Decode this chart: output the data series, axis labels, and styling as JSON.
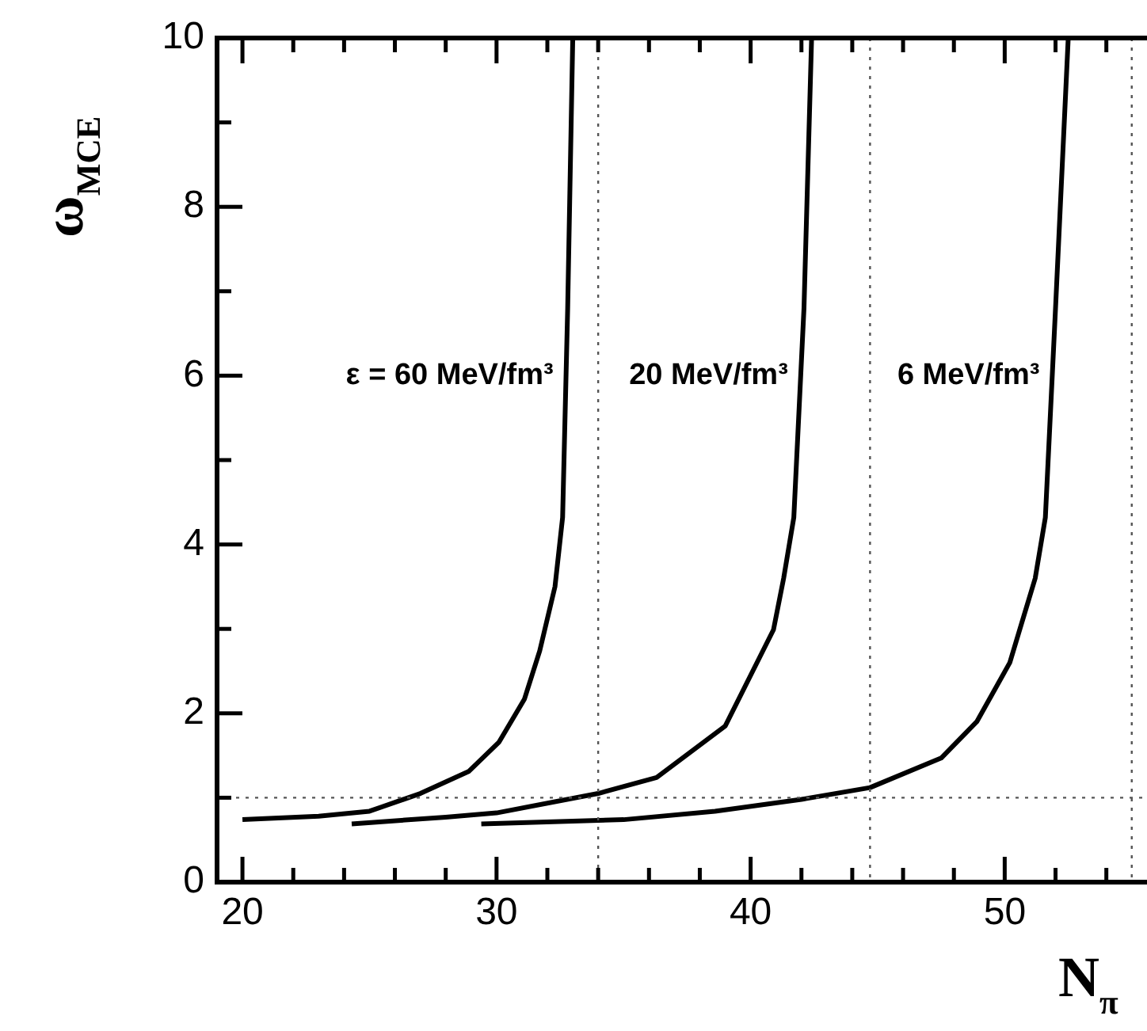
{
  "chart_data": {
    "type": "line",
    "xlabel": "N$_{π}$",
    "ylabel": "ω$_{MCE}$",
    "xlim": [
      19,
      55.6
    ],
    "ylim": [
      0,
      10
    ],
    "xticks": [
      20,
      {
        "value": 22,
        "label": null
      },
      {
        "value": 24,
        "label": null
      },
      {
        "value": 26,
        "label": null
      },
      {
        "value": 28,
        "label": null
      },
      30,
      {
        "value": 32,
        "label": null
      },
      {
        "value": 34,
        "label": null
      },
      {
        "value": 36,
        "label": null
      },
      {
        "value": 38,
        "label": null
      },
      40,
      {
        "value": 42,
        "label": null
      },
      {
        "value": 44,
        "label": null
      },
      {
        "value": 46,
        "label": null
      },
      {
        "value": 48,
        "label": null
      },
      50,
      {
        "value": 52,
        "label": null
      },
      {
        "value": 54,
        "label": null
      }
    ],
    "yticks": [
      0,
      {
        "value": 1,
        "label": null
      },
      2,
      {
        "value": 3,
        "label": null
      },
      4,
      {
        "value": 5,
        "label": null
      },
      6,
      {
        "value": 7,
        "label": null
      },
      8,
      {
        "value": 9,
        "label": null
      },
      10
    ],
    "grid": false,
    "legend": false,
    "marker": "none",
    "line_style": "solid",
    "series": [
      {
        "name": "ε = 60 MeV/fm³",
        "color": "#000000",
        "x": [
          20.0,
          23,
          25,
          27,
          28.9,
          30.1,
          31.1,
          31.7,
          32.3,
          32.6,
          32.8,
          33.0
        ],
        "values": [
          0.74,
          0.78,
          0.84,
          1.05,
          1.31,
          1.66,
          2.17,
          2.74,
          3.5,
          4.32,
          6.8,
          10
        ]
      },
      {
        "name": "20 MeV/fm³",
        "color": "#000000",
        "x": [
          24.3,
          28,
          30,
          34,
          36.3,
          39.0,
          40.9,
          41.3,
          41.7,
          42.1,
          42.4
        ],
        "values": [
          0.69,
          0.77,
          0.82,
          1.05,
          1.24,
          1.85,
          2.99,
          3.6,
          4.32,
          6.8,
          10
        ]
      },
      {
        "name": "6 MeV/fm³",
        "color": "#000000",
        "x": [
          29.4,
          35,
          38.6,
          42,
          44.7,
          47.5,
          48.9,
          50.2,
          50.6,
          51.2,
          51.6,
          52.0,
          52.5
        ],
        "values": [
          0.69,
          0.74,
          0.84,
          0.98,
          1.12,
          1.47,
          1.9,
          2.6,
          3.0,
          3.6,
          4.32,
          6.8,
          10
        ]
      }
    ],
    "ref_lines": [
      {
        "axis": "y",
        "value": 1,
        "line_style": "dotted"
      },
      {
        "axis": "x",
        "value": 34.0,
        "line_style": "dotted"
      },
      {
        "axis": "x",
        "value": 44.7,
        "line_style": "dotted"
      },
      {
        "axis": "x",
        "value": 55.0,
        "line_style": "dotted"
      }
    ]
  }
}
